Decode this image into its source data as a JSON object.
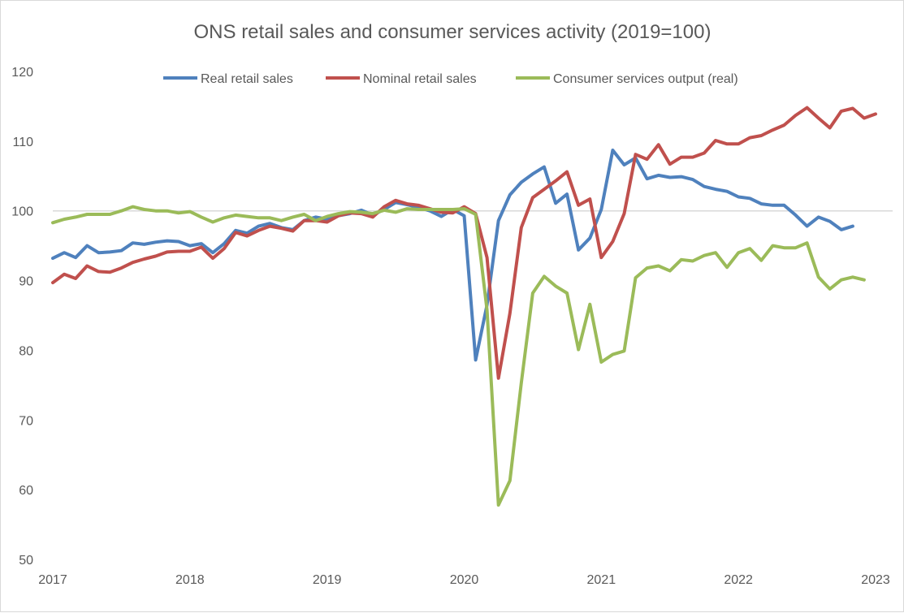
{
  "chart_data": {
    "type": "line",
    "title": "ONS retail sales and consumer  services activity (2019=100)",
    "xlabel": "",
    "ylabel": "",
    "ylim": [
      50,
      120
    ],
    "yticks": [
      50,
      60,
      70,
      80,
      90,
      100,
      110,
      120
    ],
    "x_tick_labels": [
      "2017",
      "2018",
      "2019",
      "2020",
      "2021",
      "2022",
      "2023"
    ],
    "x_range": [
      2017,
      2023
    ],
    "reference_line": 100,
    "grid": false,
    "legend_position": "top",
    "series": [
      {
        "name": "Real retail sales",
        "color": "#4f81bd",
        "values": [
          93.2,
          94.0,
          93.3,
          95.0,
          94.0,
          94.1,
          94.3,
          95.4,
          95.2,
          95.5,
          95.7,
          95.6,
          95.0,
          95.3,
          94.0,
          95.3,
          97.2,
          96.8,
          97.8,
          98.2,
          97.6,
          97.3,
          98.6,
          99.1,
          98.8,
          99.3,
          99.6,
          100.1,
          99.4,
          100.2,
          101.2,
          100.9,
          100.5,
          100.0,
          99.2,
          100.2,
          99.3,
          78.6,
          86.5,
          98.6,
          102.3,
          104.1,
          105.3,
          106.3,
          101.1,
          102.4,
          94.4,
          96.1,
          100.2,
          108.7,
          106.6,
          107.6,
          104.6,
          105.1,
          104.8,
          104.9,
          104.5,
          103.5,
          103.1,
          102.8,
          102.0,
          101.8,
          101.0,
          100.8,
          100.8,
          99.4,
          97.8,
          99.1,
          98.5,
          97.3,
          97.8
        ]
      },
      {
        "name": "Nominal retail sales",
        "color": "#c0504d",
        "values": [
          89.7,
          90.9,
          90.3,
          92.1,
          91.3,
          91.2,
          91.8,
          92.6,
          93.1,
          93.5,
          94.1,
          94.2,
          94.2,
          94.8,
          93.2,
          94.6,
          96.9,
          96.4,
          97.2,
          97.8,
          97.5,
          97.1,
          98.6,
          98.6,
          98.4,
          99.3,
          99.7,
          99.6,
          99.1,
          100.6,
          101.5,
          101.0,
          100.8,
          100.3,
          99.8,
          99.7,
          100.6,
          99.6,
          93.3,
          76.0,
          85.3,
          97.6,
          101.9,
          103.1,
          104.3,
          105.6,
          100.8,
          101.7,
          93.3,
          95.6,
          99.6,
          108.1,
          107.4,
          109.5,
          106.7,
          107.7,
          107.7,
          108.3,
          110.1,
          109.6,
          109.6,
          110.5,
          110.8,
          111.6,
          112.3,
          113.7,
          114.8,
          113.3,
          111.9,
          114.3,
          114.7,
          113.3,
          113.9
        ]
      },
      {
        "name": "Consumer services output (real)",
        "color": "#9bbb59",
        "values": [
          98.3,
          98.8,
          99.1,
          99.5,
          99.5,
          99.5,
          100.0,
          100.6,
          100.2,
          100.0,
          100.0,
          99.7,
          99.9,
          99.1,
          98.4,
          99.0,
          99.4,
          99.2,
          99.0,
          99.0,
          98.6,
          99.1,
          99.5,
          98.6,
          99.2,
          99.6,
          99.9,
          99.8,
          99.6,
          100.1,
          99.8,
          100.3,
          100.2,
          100.2,
          100.2,
          100.2,
          100.3,
          99.5,
          85.8,
          57.8,
          61.3,
          75.3,
          88.2,
          90.6,
          89.2,
          88.2,
          80.1,
          86.6,
          78.3,
          79.4,
          79.9,
          90.4,
          91.8,
          92.1,
          91.4,
          93.0,
          92.8,
          93.6,
          94.0,
          91.9,
          94.0,
          94.6,
          92.9,
          95.0,
          94.7,
          94.7,
          95.4,
          90.5,
          88.8,
          90.1,
          90.5,
          90.1
        ]
      }
    ]
  }
}
